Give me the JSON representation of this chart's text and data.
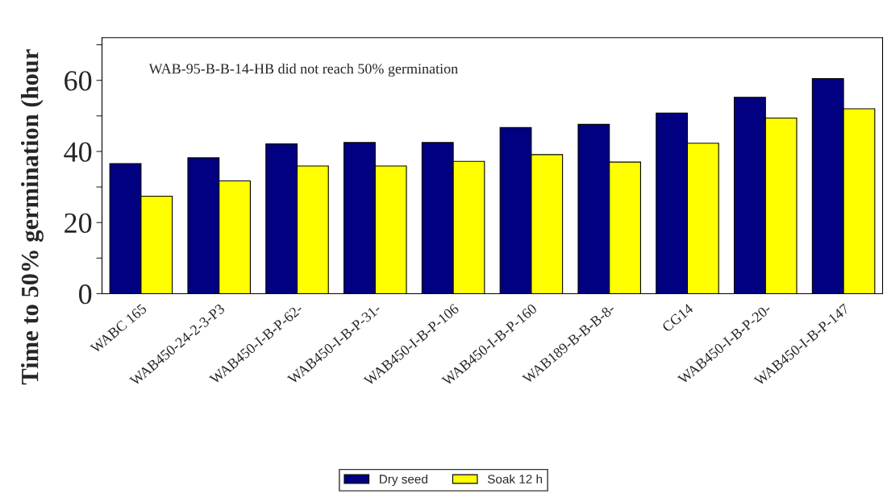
{
  "chart_data": {
    "type": "bar",
    "ylabel": "Time to 50% germination (hour",
    "categories": [
      "WABC 165",
      "WAB450-24-2-3-P3",
      "WAB450-I-B-P-62-",
      "WAB450-I-B-P-31-",
      "WAB450-I-B-P-106",
      "WAB450-I-B-P-160",
      "WAB189-B-B-B-8-",
      "CG14",
      "WAB450-I-B-P-20-",
      "WAB450-I-B-P-147"
    ],
    "series": [
      {
        "name": "Dry seed",
        "color": "#000080",
        "values": [
          36.6,
          38.2,
          42.1,
          42.5,
          42.5,
          46.7,
          47.6,
          50.8,
          55.2,
          60.5
        ]
      },
      {
        "name": "Soak 12 h",
        "color": "#ffff00",
        "values": [
          27.4,
          31.7,
          35.9,
          35.9,
          37.2,
          39.1,
          37.0,
          42.3,
          49.4,
          52.0
        ]
      }
    ],
    "ylim": [
      0,
      72
    ],
    "yticks": [
      0,
      {
        "value": 10,
        "label": null
      },
      20,
      {
        "value": 30,
        "label": null
      },
      40,
      {
        "value": 50,
        "label": null
      },
      60,
      {
        "value": 70,
        "label": null
      }
    ],
    "annotations": [
      "WAB-95-B-B-14-HB did not reach 50% germination"
    ],
    "legend": "bottom",
    "grid": false
  }
}
